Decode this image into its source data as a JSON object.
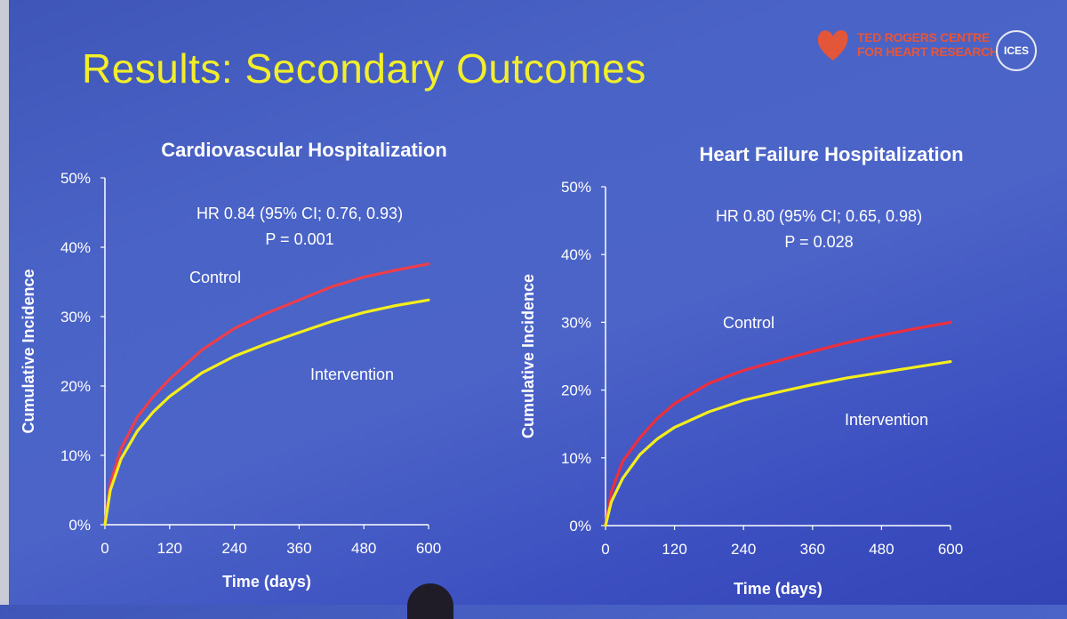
{
  "slide": {
    "title": "Results:  Secondary Outcomes",
    "brand_line1": "TED ROGERS CENTRE",
    "brand_line2": "FOR HEART RESEARCH",
    "badge": "ICES",
    "brand_color": "#e4563a",
    "title_color": "#f2ee2a"
  },
  "chart_data": [
    {
      "type": "line",
      "title": "Cardiovascular Hospitalization",
      "xlabel": "Time (days)",
      "ylabel": "Cumulative Incidence",
      "xlim": [
        0,
        600
      ],
      "ylim": [
        0,
        50
      ],
      "xticks": [
        0,
        120,
        240,
        360,
        480,
        600
      ],
      "yticks": [
        0,
        10,
        20,
        30,
        40,
        50
      ],
      "yticklabels": [
        "0%",
        "10%",
        "20%",
        "30%",
        "40%",
        "50%"
      ],
      "annotation": [
        "HR 0.84  (95% CI; 0.76, 0.93)",
        "P = 0.001"
      ],
      "series": [
        {
          "name": "Control",
          "color": "#ee3e4b",
          "x": [
            0,
            10,
            30,
            60,
            90,
            120,
            180,
            240,
            300,
            360,
            420,
            480,
            540,
            600
          ],
          "y": [
            0,
            6,
            11,
            15.5,
            18.5,
            21,
            25.2,
            28.3,
            30.5,
            32.4,
            34.3,
            35.7,
            36.7,
            37.6
          ]
        },
        {
          "name": "Intervention",
          "color": "#f4ee1c",
          "x": [
            0,
            10,
            30,
            60,
            90,
            120,
            180,
            240,
            300,
            360,
            420,
            480,
            540,
            600
          ],
          "y": [
            0,
            5,
            9.5,
            13.5,
            16.3,
            18.5,
            21.9,
            24.3,
            26.1,
            27.7,
            29.3,
            30.6,
            31.6,
            32.4
          ]
        }
      ]
    },
    {
      "type": "line",
      "title": "Heart Failure Hospitalization",
      "xlabel": "Time (days)",
      "ylabel": "Cumulative Incidence",
      "xlim": [
        0,
        600
      ],
      "ylim": [
        0,
        50
      ],
      "xticks": [
        0,
        120,
        240,
        360,
        480,
        600
      ],
      "yticks": [
        0,
        10,
        20,
        30,
        40,
        50
      ],
      "yticklabels": [
        "0%",
        "10%",
        "20%",
        "30%",
        "40%",
        "50%"
      ],
      "annotation": [
        "HR 0.80  (95% CI; 0.65, 0.98)",
        "P = 0.028"
      ],
      "series": [
        {
          "name": "Control",
          "color": "#ee2f3c",
          "x": [
            0,
            10,
            30,
            60,
            90,
            120,
            180,
            240,
            300,
            360,
            420,
            480,
            540,
            600
          ],
          "y": [
            0,
            5,
            9.5,
            13,
            15.8,
            18,
            21,
            22.9,
            24.3,
            25.7,
            27,
            28.1,
            29.1,
            30
          ]
        },
        {
          "name": "Intervention",
          "color": "#f4ee1c",
          "x": [
            0,
            10,
            30,
            60,
            90,
            120,
            180,
            240,
            300,
            360,
            420,
            480,
            540,
            600
          ],
          "y": [
            0,
            3.5,
            7,
            10.5,
            12.8,
            14.5,
            16.8,
            18.5,
            19.7,
            20.8,
            21.8,
            22.6,
            23.4,
            24.2
          ]
        }
      ]
    }
  ]
}
